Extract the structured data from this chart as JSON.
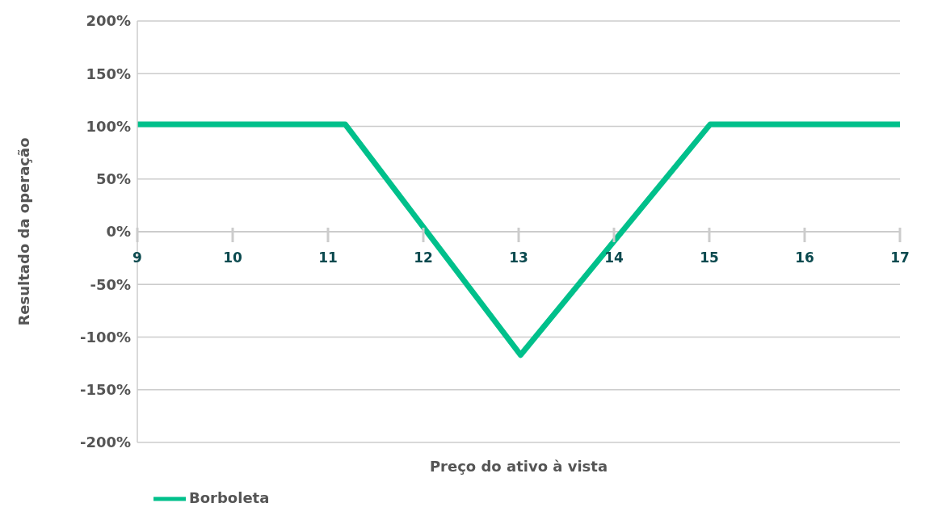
{
  "chart_data": {
    "type": "line",
    "xlabel": "Preço do ativo à vista",
    "ylabel": "Resultado da operação",
    "series": [
      {
        "name": "Borboleta",
        "color": "#00c08b",
        "x": [
          9,
          11.18,
          13.02,
          15.01,
          17
        ],
        "values": [
          102,
          102,
          -117,
          102,
          102
        ]
      }
    ],
    "xlim": [
      9,
      17
    ],
    "xticks": [
      9,
      10,
      11,
      12,
      13,
      14,
      15,
      16,
      17
    ],
    "ylim": [
      -200,
      200
    ],
    "yticks": [
      {
        "value": -200,
        "label": "-200%"
      },
      {
        "value": -150,
        "label": "-150%"
      },
      {
        "value": -100,
        "label": "-100%"
      },
      {
        "value": -50,
        "label": "-50%"
      },
      {
        "value": 0,
        "label": "0%"
      },
      {
        "value": 50,
        "label": "50%"
      },
      {
        "value": 100,
        "label": "100%"
      },
      {
        "value": 150,
        "label": "150%"
      },
      {
        "value": 200,
        "label": "200%"
      }
    ],
    "grid": "y",
    "legend": "bottom left",
    "marker": "none",
    "line_style": "solid"
  }
}
